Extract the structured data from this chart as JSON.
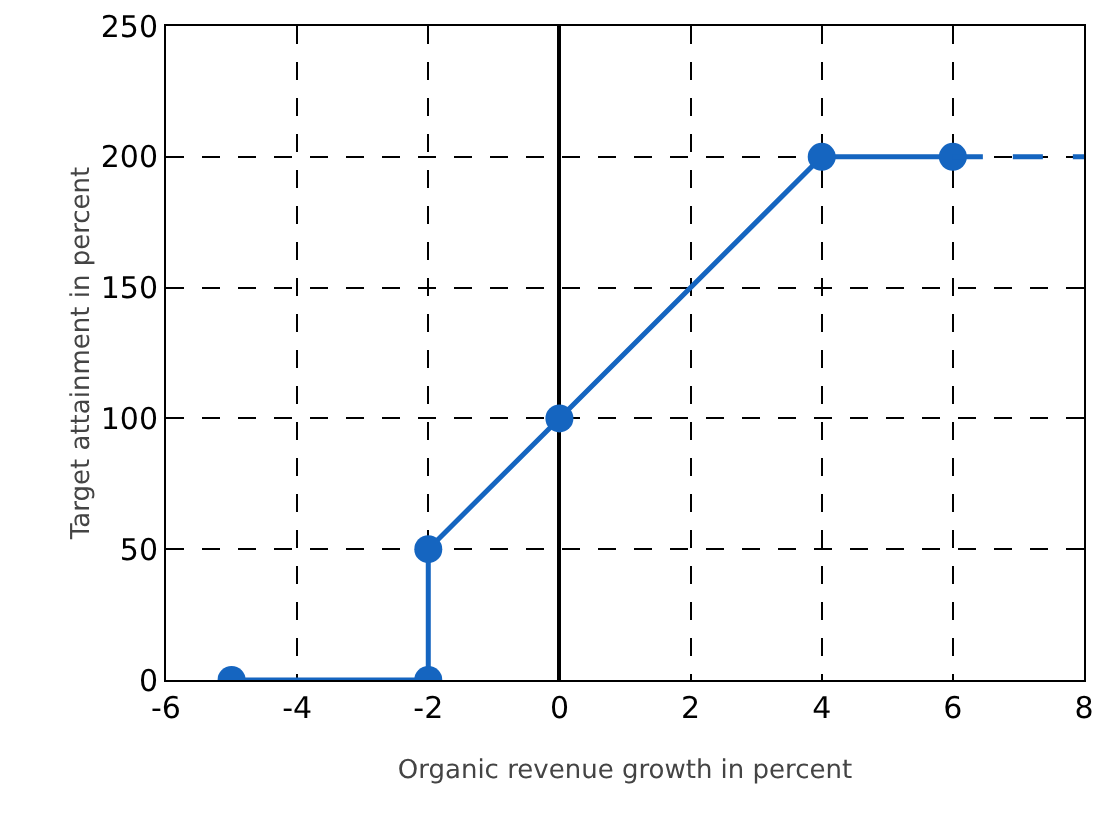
{
  "chart_data": {
    "type": "line",
    "xlabel": "Organic revenue growth in percent",
    "ylabel": "Target attainment in percent",
    "xlim": [
      -6,
      8
    ],
    "xticks": [
      -6,
      -4,
      -2,
      0,
      2,
      4,
      6,
      8
    ],
    "ylim": [
      0,
      250
    ],
    "yticks": [
      0,
      50,
      100,
      150,
      200,
      250
    ],
    "grid": true,
    "marker": "circle",
    "line_style": "solid",
    "series": [
      {
        "color": "#1565c0",
        "x": [
          -5,
          -2,
          -2,
          0,
          4,
          6
        ],
        "values": [
          0,
          0,
          50,
          100,
          200,
          200
        ]
      },
      {
        "color": "#1565c0",
        "x": [
          6,
          8
        ],
        "values": [
          200,
          200
        ],
        "marker": "none",
        "line_style": "dashed"
      }
    ]
  }
}
